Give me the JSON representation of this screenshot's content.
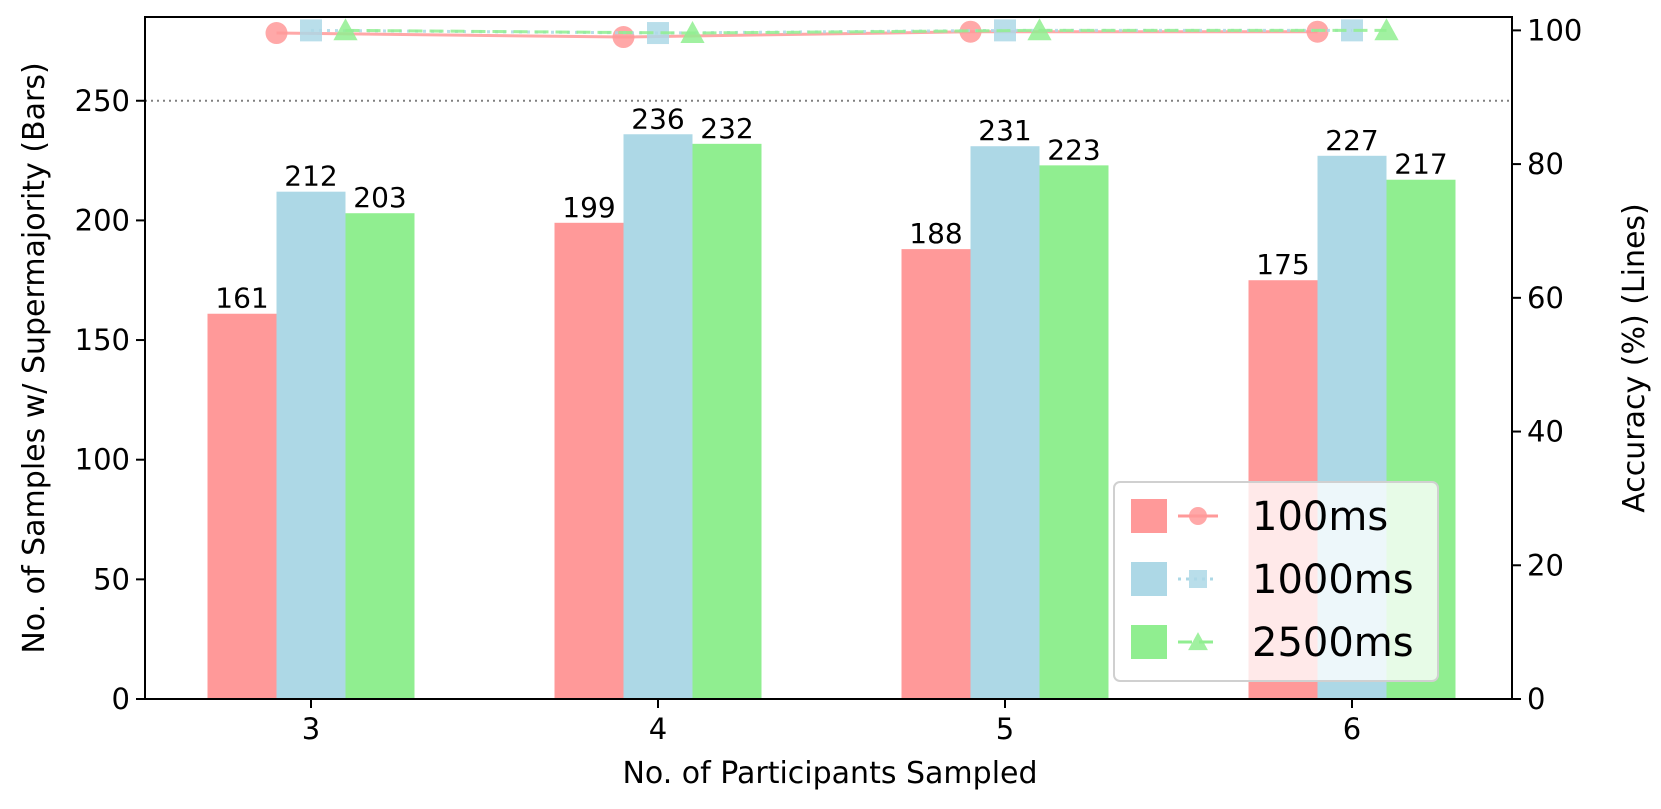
{
  "chart_data": {
    "type": "bar+line",
    "title": "",
    "xlabel": "No. of Participants Sampled",
    "ylabel_left": "No. of Samples w/ Supermajority (Bars)",
    "ylabel_right": "Accuracy (%) (Lines)",
    "categories": [
      "3",
      "4",
      "5",
      "6"
    ],
    "ylim_left": [
      0,
      285
    ],
    "ylim_right": [
      0,
      102
    ],
    "yticks_left": [
      0,
      50,
      100,
      150,
      200,
      250
    ],
    "yticks_right": [
      0,
      20,
      40,
      60,
      80,
      100
    ],
    "reference_line": {
      "axis": "left",
      "value": 250,
      "style": "dotted",
      "color": "#808080"
    },
    "series": [
      {
        "name": "100ms",
        "color": "#ff9999",
        "bars": [
          161,
          199,
          188,
          175
        ],
        "accuracy": [
          99.6,
          99.0,
          99.8,
          99.8
        ],
        "marker": "circle",
        "line_style": "solid"
      },
      {
        "name": "1000ms",
        "color": "#add8e6",
        "bars": [
          212,
          236,
          231,
          227
        ],
        "accuracy": [
          100,
          99.6,
          100,
          100
        ],
        "marker": "square",
        "line_style": "dotted"
      },
      {
        "name": "2500ms",
        "color": "#90ee90",
        "bars": [
          203,
          232,
          223,
          217
        ],
        "accuracy": [
          100,
          99.6,
          100,
          100
        ],
        "marker": "triangle",
        "line_style": "dashed"
      }
    ],
    "legend_position": "lower-right",
    "grid": false
  }
}
